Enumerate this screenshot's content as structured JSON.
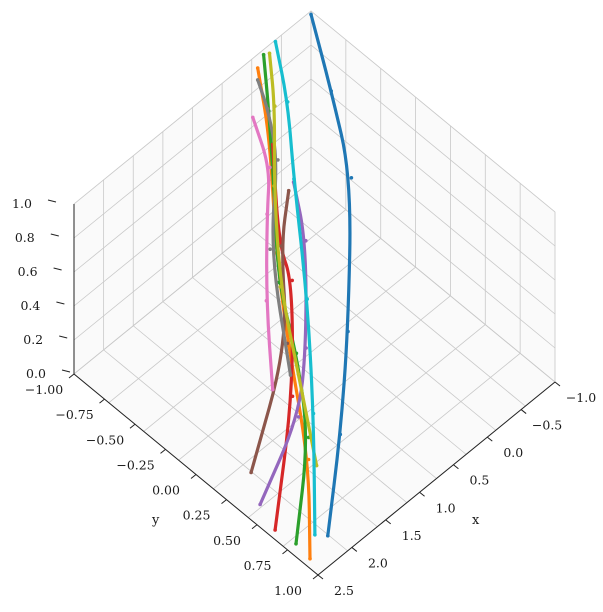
{
  "chart_data": {
    "type": "line",
    "projection": "3d",
    "title": "",
    "xlabel": "x",
    "ylabel": "y",
    "zlabel": "",
    "xlim": [
      -1.0,
      2.5
    ],
    "ylim": [
      -1.0,
      1.0
    ],
    "zlim": [
      0.0,
      1.0
    ],
    "grid": true,
    "x_ticks": [
      "−1.0",
      "−0.5",
      "0.0",
      "0.5",
      "1.0",
      "1.5",
      "2.0",
      "2.5"
    ],
    "y_ticks": [
      "−1.00",
      "−0.75",
      "−0.50",
      "−0.25",
      "0.00",
      "0.25",
      "0.50",
      "0.75",
      "1.00"
    ],
    "z_ticks": [
      "0.0",
      "0.2",
      "0.4",
      "0.6",
      "0.8",
      "1.0"
    ],
    "colors": [
      "#1f77b4",
      "#ff7f0e",
      "#2ca02c",
      "#d62728",
      "#9467bd",
      "#8c564b",
      "#e377c2",
      "#7f7f7f",
      "#bcbd22",
      "#17becf"
    ],
    "series": [
      {
        "x": [
          -1.0,
          -0.2,
          0.6,
          1.4,
          1.8,
          2.3
        ],
        "y": [
          -1.0,
          -0.7,
          -0.4,
          0.1,
          0.4,
          0.8
        ],
        "z": [
          0.98,
          0.97,
          0.9,
          0.55,
          0.25,
          0.05
        ]
      },
      {
        "x": [
          -1.0,
          -0.4,
          0.2,
          0.8,
          1.6,
          2.3
        ],
        "y": [
          -0.55,
          -0.3,
          0.0,
          0.25,
          0.55,
          0.95
        ],
        "z": [
          0.92,
          0.85,
          0.55,
          0.35,
          0.12,
          0.0
        ]
      },
      {
        "x": [
          -1.0,
          -0.5,
          0.0,
          0.4,
          1.0,
          1.6,
          2.1
        ],
        "y": [
          -0.6,
          -0.35,
          -0.1,
          0.1,
          0.3,
          0.55,
          0.95
        ],
        "z": [
          0.97,
          0.95,
          0.8,
          0.5,
          0.4,
          0.25,
          0.02
        ]
      },
      {
        "x": [
          -0.7,
          -0.1,
          0.6,
          1.2,
          1.8
        ],
        "y": [
          -0.5,
          -0.2,
          0.1,
          0.45,
          0.95
        ],
        "z": [
          0.6,
          0.38,
          0.58,
          0.3,
          0.0
        ]
      },
      {
        "x": [
          -0.4,
          0.2,
          0.8,
          1.2,
          1.5
        ],
        "y": [
          -0.5,
          -0.25,
          0.1,
          0.4,
          0.9
        ],
        "z": [
          0.48,
          0.48,
          0.25,
          0.15,
          0.02
        ]
      },
      {
        "x": [
          -0.3,
          0.1,
          0.7,
          1.2
        ],
        "y": [
          -0.4,
          -0.1,
          0.2,
          0.8
        ],
        "z": [
          0.52,
          0.5,
          0.3,
          0.05
        ]
      },
      {
        "x": [
          -0.9,
          -0.4,
          -0.1,
          0.4,
          1.0
        ],
        "y": [
          -0.45,
          -0.3,
          -0.1,
          0.2,
          0.5
        ],
        "z": [
          0.72,
          0.68,
          0.62,
          0.45,
          0.3
        ]
      },
      {
        "x": [
          -1.0,
          -0.6,
          -0.2,
          0.2,
          1.0
        ],
        "y": [
          -0.55,
          -0.4,
          -0.25,
          0.05,
          0.35
        ],
        "z": [
          0.85,
          0.9,
          0.82,
          0.6,
          0.3
        ]
      },
      {
        "x": [
          -1.0,
          -0.5,
          0.0,
          0.6,
          1.2,
          1.8
        ],
        "y": [
          -0.65,
          -0.4,
          -0.1,
          0.2,
          0.4,
          0.6
        ],
        "z": [
          0.95,
          0.95,
          0.82,
          0.6,
          0.4,
          0.18
        ]
      },
      {
        "x": [
          -1.0,
          -0.4,
          0.2,
          0.9,
          1.5,
          2.2
        ],
        "y": [
          -0.7,
          -0.45,
          -0.15,
          0.15,
          0.45,
          0.85
        ],
        "z": [
          0.99,
          0.98,
          0.9,
          0.6,
          0.3,
          0.05
        ]
      }
    ]
  }
}
